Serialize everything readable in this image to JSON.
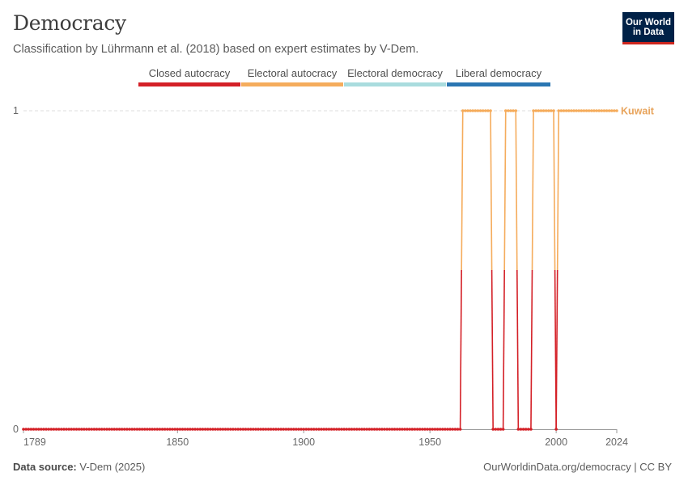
{
  "header": {
    "title": "Democracy",
    "subtitle": "Classification by Lührmann et al. (2018) based on expert estimates by V-Dem."
  },
  "logo": {
    "line1": "Our World",
    "line2": "in Data"
  },
  "legend": [
    {
      "label": "Closed autocracy",
      "color": "#d42027"
    },
    {
      "label": "Electoral autocracy",
      "color": "#f5ac5c"
    },
    {
      "label": "Electoral democracy",
      "color": "#a9dcde"
    },
    {
      "label": "Liberal democracy",
      "color": "#2a76b2"
    }
  ],
  "footer": {
    "source_label": "Data source:",
    "source_value": "V-Dem (2025)",
    "credit": "OurWorldinData.org/democracy | CC BY"
  },
  "chart_data": {
    "type": "line",
    "title": "Democracy",
    "xlabel": "",
    "ylabel": "",
    "xlim": [
      1789,
      2024
    ],
    "ylim": [
      0,
      1
    ],
    "xticks": [
      1789,
      1850,
      1900,
      1950,
      2000,
      2024
    ],
    "yticks": [
      0,
      1
    ],
    "grid": "horizontal-dashed",
    "series": [
      {
        "name": "Kuwait",
        "color": "#e8a45c",
        "colors": {
          "0": "#d42027",
          "1": "#f5ac5c"
        },
        "description": "Regime category value (0 = closed autocracy, 1 = electoral autocracy)",
        "segments": [
          {
            "from": 1789,
            "to": 1962,
            "value": 0
          },
          {
            "from": 1963,
            "to": 1974,
            "value": 1
          },
          {
            "from": 1975,
            "to": 1979,
            "value": 0
          },
          {
            "from": 1980,
            "to": 1984,
            "value": 1
          },
          {
            "from": 1985,
            "to": 1990,
            "value": 0
          },
          {
            "from": 1991,
            "to": 1999,
            "value": 1
          },
          {
            "from": 2000,
            "to": 2000,
            "value": 0
          },
          {
            "from": 2001,
            "to": 2024,
            "value": 1
          }
        ]
      }
    ]
  }
}
